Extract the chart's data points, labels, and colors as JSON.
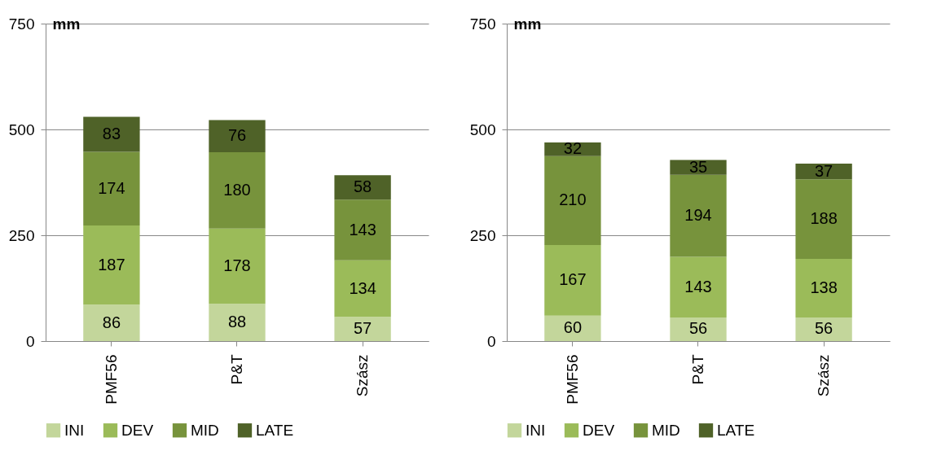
{
  "chart_data": [
    {
      "type": "bar",
      "stacked": true,
      "ylabel": "mm",
      "categories": [
        "PMF56",
        "P&T",
        "Szász"
      ],
      "series": [
        {
          "name": "INI",
          "color": "#c3d69b",
          "values": [
            86,
            88,
            57
          ]
        },
        {
          "name": "DEV",
          "color": "#9bbb59",
          "values": [
            187,
            178,
            134
          ]
        },
        {
          "name": "MID",
          "color": "#77933c",
          "values": [
            174,
            180,
            143
          ]
        },
        {
          "name": "LATE",
          "color": "#4f6228",
          "values": [
            83,
            76,
            58
          ]
        }
      ],
      "ylim": [
        0,
        750
      ],
      "yticks": [
        0,
        250,
        500,
        750
      ],
      "grid": "y",
      "legend": "bottom",
      "data_labels": true
    },
    {
      "type": "bar",
      "stacked": true,
      "ylabel": "mm",
      "categories": [
        "PMF56",
        "P&T",
        "Szász"
      ],
      "series": [
        {
          "name": "INI",
          "color": "#c3d69b",
          "values": [
            60,
            56,
            56
          ]
        },
        {
          "name": "DEV",
          "color": "#9bbb59",
          "values": [
            167,
            143,
            138
          ]
        },
        {
          "name": "MID",
          "color": "#77933c",
          "values": [
            210,
            194,
            188
          ]
        },
        {
          "name": "LATE",
          "color": "#4f6228",
          "values": [
            32,
            35,
            37
          ]
        }
      ],
      "ylim": [
        0,
        750
      ],
      "yticks": [
        0,
        250,
        500,
        750
      ],
      "grid": "y",
      "legend": "bottom",
      "data_labels": true
    }
  ]
}
